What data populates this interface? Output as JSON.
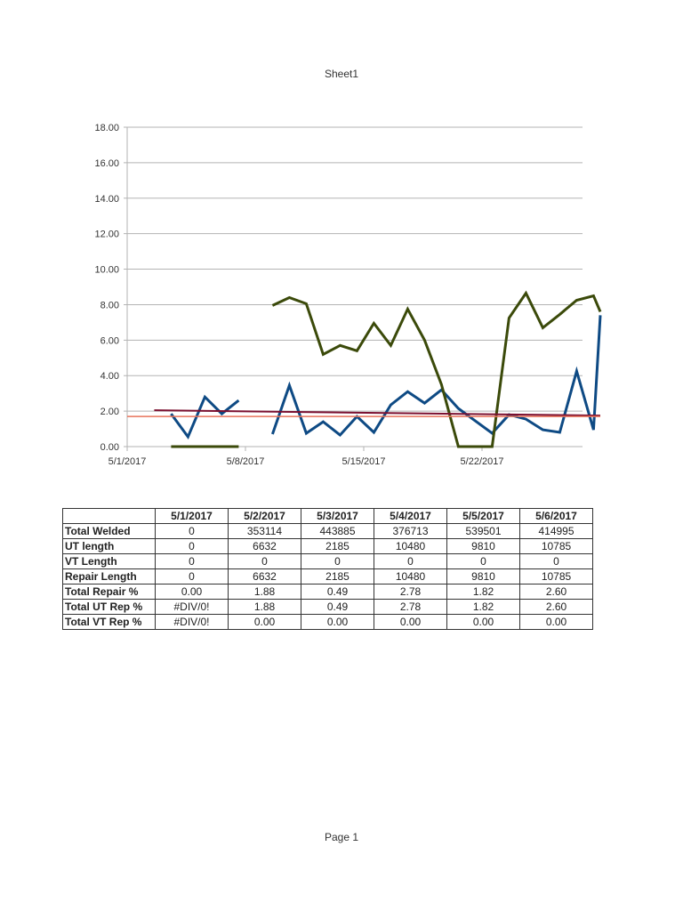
{
  "page": {
    "title": "Sheet1",
    "footer": "Page 1"
  },
  "chart_data": {
    "type": "line",
    "title": "",
    "xlabel": "",
    "ylabel": "",
    "ylim": [
      0,
      18
    ],
    "y_ticks": [
      "0.00",
      "2.00",
      "4.00",
      "6.00",
      "8.00",
      "10.00",
      "12.00",
      "14.00",
      "16.00",
      "18.00"
    ],
    "x_ticks": [
      "5/1/2017",
      "5/8/2017",
      "5/15/2017",
      "5/22/2017"
    ],
    "grid": true,
    "legend": null,
    "series": [
      {
        "name": "Blue series",
        "color": "#0e4a84",
        "segments": [
          [
            [
              2.6,
              1.85
            ],
            [
              3.6,
              0.55
            ],
            [
              4.6,
              2.8
            ],
            [
              5.6,
              1.85
            ],
            [
              6.6,
              2.6
            ]
          ],
          [
            [
              8.6,
              0.7
            ],
            [
              9.6,
              3.45
            ],
            [
              10.6,
              0.75
            ],
            [
              11.6,
              1.4
            ],
            [
              12.6,
              0.65
            ],
            [
              13.6,
              1.7
            ],
            [
              14.6,
              0.8
            ],
            [
              15.6,
              2.35
            ],
            [
              16.6,
              3.1
            ],
            [
              17.6,
              2.45
            ],
            [
              18.6,
              3.2
            ],
            [
              19.6,
              2.15
            ],
            [
              20.6,
              1.45
            ],
            [
              21.6,
              0.75
            ],
            [
              22.6,
              1.8
            ],
            [
              23.6,
              1.55
            ],
            [
              24.6,
              0.95
            ],
            [
              25.6,
              0.8
            ],
            [
              26.6,
              4.25
            ],
            [
              27.6,
              0.95
            ],
            [
              28.0,
              7.4
            ]
          ]
        ]
      },
      {
        "name": "Green series",
        "color": "#3b4a0a",
        "segments": [
          [
            [
              2.6,
              0
            ],
            [
              3.6,
              0
            ],
            [
              4.6,
              0
            ],
            [
              5.6,
              0
            ],
            [
              6.6,
              0
            ]
          ],
          [
            [
              8.6,
              7.95
            ],
            [
              9.6,
              8.4
            ],
            [
              10.6,
              8.05
            ],
            [
              11.6,
              5.2
            ],
            [
              12.6,
              5.7
            ],
            [
              13.6,
              5.4
            ],
            [
              14.6,
              6.95
            ],
            [
              15.6,
              5.7
            ],
            [
              16.6,
              7.75
            ],
            [
              17.6,
              6.0
            ],
            [
              18.6,
              3.5
            ],
            [
              19.6,
              0
            ],
            [
              20.6,
              0
            ],
            [
              21.6,
              0
            ],
            [
              22.6,
              7.25
            ],
            [
              23.6,
              8.65
            ],
            [
              24.6,
              6.7
            ],
            [
              25.6,
              7.45
            ],
            [
              26.6,
              8.25
            ],
            [
              27.6,
              8.5
            ],
            [
              28.0,
              7.6
            ]
          ]
        ]
      },
      {
        "name": "Trend line",
        "color": "#7b1030",
        "segments": [
          [
            [
              1.6,
              2.05
            ],
            [
              28.0,
              1.75
            ]
          ]
        ]
      },
      {
        "name": "Reference line",
        "color": "#e8735a",
        "segments": [
          [
            [
              0.0,
              1.7
            ],
            [
              28.0,
              1.7
            ]
          ]
        ]
      }
    ],
    "x_domain_days": [
      0,
      28
    ],
    "x_origin": "5/1/2017"
  },
  "table": {
    "headers": [
      "",
      "5/1/2017",
      "5/2/2017",
      "5/3/2017",
      "5/4/2017",
      "5/5/2017",
      "5/6/2017"
    ],
    "rows": [
      {
        "label": "Total Welded",
        "values": [
          "0",
          "353114",
          "443885",
          "376713",
          "539501",
          "414995"
        ]
      },
      {
        "label": "UT length",
        "values": [
          "0",
          "6632",
          "2185",
          "10480",
          "9810",
          "10785"
        ]
      },
      {
        "label": "VT Length",
        "values": [
          "0",
          "0",
          "0",
          "0",
          "0",
          "0"
        ]
      },
      {
        "label": "Repair Length",
        "values": [
          "0",
          "6632",
          "2185",
          "10480",
          "9810",
          "10785"
        ]
      },
      {
        "label": "Total Repair %",
        "values": [
          "0.00",
          "1.88",
          "0.49",
          "2.78",
          "1.82",
          "2.60"
        ]
      },
      {
        "label": "Total UT Rep %",
        "values": [
          "#DIV/0!",
          "1.88",
          "0.49",
          "2.78",
          "1.82",
          "2.60"
        ]
      },
      {
        "label": "Total VT Rep %",
        "values": [
          "#DIV/0!",
          "0.00",
          "0.00",
          "0.00",
          "0.00",
          "0.00"
        ]
      }
    ]
  }
}
